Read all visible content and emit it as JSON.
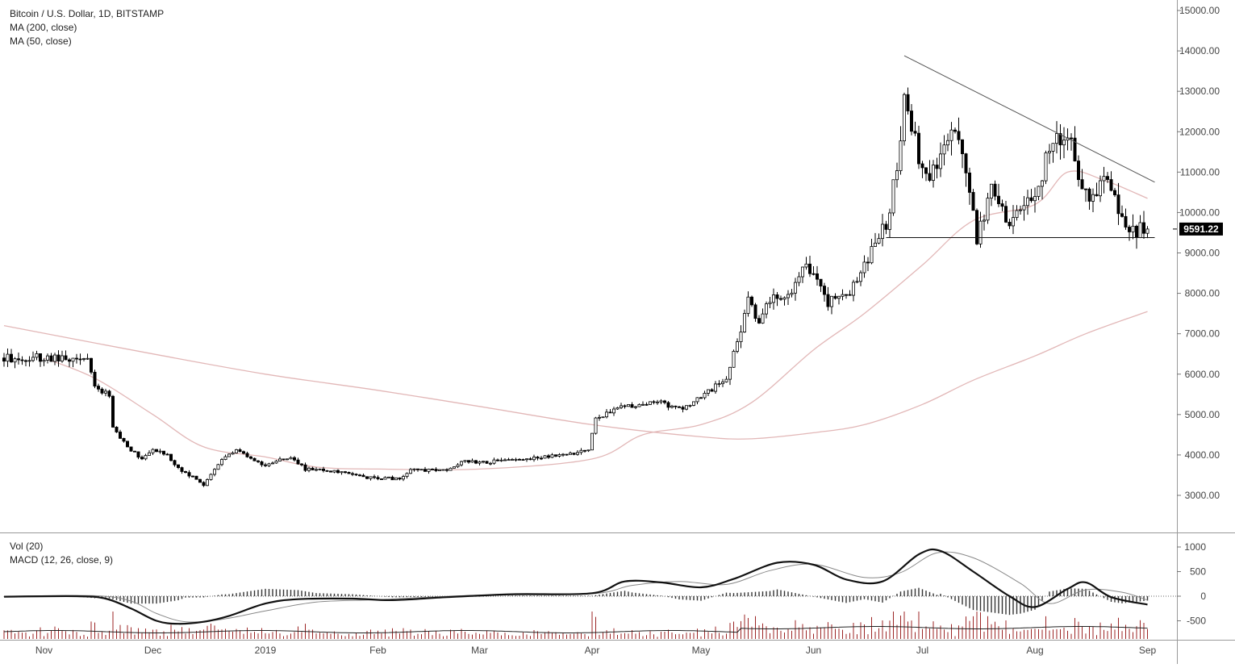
{
  "legend_price": {
    "symbol": "Bitcoin / U.S. Dollar, 1D, BITSTAMP",
    "ma200": "MA (200, close)",
    "ma50": "MA (50, close)"
  },
  "legend_indicators": {
    "vol": "Vol (20)",
    "macd": "MACD (12, 26, close, 9)"
  },
  "last_price_label": "9591.22",
  "colors": {
    "candle": "#000000",
    "ma_lines": "#e2b7b7",
    "trendline": "#555555",
    "macd_line": "#111111",
    "signal_line": "#888888",
    "histogram": "#333333",
    "volume_bars": "#8b0000",
    "axis_text": "#444444",
    "price_tag_bg": "#000000"
  },
  "chart_data": [
    {
      "type": "candlestick",
      "title": "Bitcoin / U.S. Dollar, 1D, BITSTAMP",
      "x_ticks": [
        "Nov",
        "Dec",
        "2019",
        "Feb",
        "Mar",
        "Apr",
        "May",
        "Jun",
        "Jul",
        "Aug",
        "Sep"
      ],
      "x_tick_dates": [
        "2018-11-01",
        "2018-12-01",
        "2019-01-01",
        "2019-02-01",
        "2019-03-01",
        "2019-04-01",
        "2019-05-01",
        "2019-06-01",
        "2019-07-01",
        "2019-08-01",
        "2019-09-01"
      ],
      "y_ticks": [
        "15000.00",
        "14000.00",
        "13000.00",
        "12000.00",
        "11000.00",
        "10000.00",
        "9000.00",
        "8000.00",
        "7000.00",
        "6000.00",
        "5000.00",
        "4000.00",
        "3000.00"
      ],
      "ylim": [
        2100,
        15250
      ],
      "last_price": 9591.22,
      "close_path": [
        [
          "2018-10-21",
          6400
        ],
        [
          "2018-11-05",
          6420
        ],
        [
          "2018-11-13",
          6350
        ],
        [
          "2018-11-15",
          5650
        ],
        [
          "2018-11-19",
          5500
        ],
        [
          "2018-11-20",
          4700
        ],
        [
          "2018-11-24",
          4200
        ],
        [
          "2018-11-28",
          3900
        ],
        [
          "2018-12-01",
          4150
        ],
        [
          "2018-12-05",
          4000
        ],
        [
          "2018-12-08",
          3650
        ],
        [
          "2018-12-12",
          3450
        ],
        [
          "2018-12-15",
          3220
        ],
        [
          "2018-12-17",
          3500
        ],
        [
          "2018-12-20",
          3900
        ],
        [
          "2018-12-24",
          4100
        ],
        [
          "2019-01-01",
          3750
        ],
        [
          "2019-01-08",
          3950
        ],
        [
          "2019-01-12",
          3650
        ],
        [
          "2019-01-20",
          3600
        ],
        [
          "2019-01-28",
          3450
        ],
        [
          "2019-02-07",
          3400
        ],
        [
          "2019-02-10",
          3650
        ],
        [
          "2019-02-20",
          3600
        ],
        [
          "2019-02-24",
          3850
        ],
        [
          "2019-02-28",
          3820
        ],
        [
          "2019-03-10",
          3850
        ],
        [
          "2019-03-20",
          3980
        ],
        [
          "2019-03-31",
          4100
        ],
        [
          "2019-04-02",
          4900
        ],
        [
          "2019-04-10",
          5200
        ],
        [
          "2019-04-20",
          5300
        ],
        [
          "2019-04-26",
          5100
        ],
        [
          "2019-05-05",
          5700
        ],
        [
          "2019-05-08",
          5900
        ],
        [
          "2019-05-11",
          6800
        ],
        [
          "2019-05-14",
          7900
        ],
        [
          "2019-05-17",
          7300
        ],
        [
          "2019-05-20",
          7900
        ],
        [
          "2019-05-25",
          8000
        ],
        [
          "2019-05-30",
          8650
        ],
        [
          "2019-06-05",
          7800
        ],
        [
          "2019-06-10",
          7900
        ],
        [
          "2019-06-15",
          8700
        ],
        [
          "2019-06-21",
          9800
        ],
        [
          "2019-06-24",
          11000
        ],
        [
          "2019-06-26",
          12800
        ],
        [
          "2019-06-28",
          12000
        ],
        [
          "2019-07-02",
          10800
        ],
        [
          "2019-07-05",
          11200
        ],
        [
          "2019-07-09",
          12300
        ],
        [
          "2019-07-12",
          11400
        ],
        [
          "2019-07-16",
          9400
        ],
        [
          "2019-07-20",
          10500
        ],
        [
          "2019-07-25",
          9800
        ],
        [
          "2019-08-01",
          10400
        ],
        [
          "2019-08-06",
          11800
        ],
        [
          "2019-08-10",
          11900
        ],
        [
          "2019-08-15",
          10400
        ],
        [
          "2019-08-20",
          10800
        ],
        [
          "2019-08-24",
          10100
        ],
        [
          "2019-08-28",
          9500
        ],
        [
          "2019-08-31",
          9600
        ],
        [
          "2019-09-01",
          9591.22
        ]
      ],
      "series": [
        {
          "name": "MA (200, close)",
          "points": [
            [
              "2018-10-21",
              7200
            ],
            [
              "2018-12-01",
              6500
            ],
            [
              "2019-01-01",
              6000
            ],
            [
              "2019-02-01",
              5600
            ],
            [
              "2019-03-01",
              5200
            ],
            [
              "2019-04-01",
              4750
            ],
            [
              "2019-05-01",
              4450
            ],
            [
              "2019-05-15",
              4400
            ],
            [
              "2019-06-01",
              4550
            ],
            [
              "2019-06-15",
              4750
            ],
            [
              "2019-07-01",
              5250
            ],
            [
              "2019-07-15",
              5850
            ],
            [
              "2019-08-01",
              6450
            ],
            [
              "2019-08-15",
              7000
            ],
            [
              "2019-09-01",
              7550
            ]
          ]
        },
        {
          "name": "MA (50, close)",
          "points": [
            [
              "2018-11-01",
              6400
            ],
            [
              "2018-11-15",
              5900
            ],
            [
              "2018-12-01",
              5000
            ],
            [
              "2018-12-15",
              4200
            ],
            [
              "2019-01-01",
              3950
            ],
            [
              "2019-01-15",
              3700
            ],
            [
              "2019-02-01",
              3650
            ],
            [
              "2019-03-01",
              3650
            ],
            [
              "2019-04-01",
              3900
            ],
            [
              "2019-04-15",
              4500
            ],
            [
              "2019-05-01",
              4750
            ],
            [
              "2019-05-15",
              5300
            ],
            [
              "2019-06-01",
              6600
            ],
            [
              "2019-06-15",
              7500
            ],
            [
              "2019-07-01",
              8700
            ],
            [
              "2019-07-15",
              9800
            ],
            [
              "2019-08-01",
              10200
            ],
            [
              "2019-08-10",
              11000
            ],
            [
              "2019-08-20",
              10800
            ],
            [
              "2019-09-01",
              10350
            ]
          ]
        }
      ],
      "trendlines": [
        {
          "from": [
            "2019-06-26",
            13880
          ],
          "to": [
            "2019-09-03",
            10750
          ]
        },
        {
          "from": [
            "2019-06-21",
            9380
          ],
          "to": [
            "2019-09-03",
            9380
          ]
        }
      ]
    },
    {
      "type": "line",
      "title": "MACD (12, 26, close, 9)",
      "y_ticks": [
        "1000",
        "500",
        "0",
        "-500"
      ],
      "ylim": [
        -800,
        1150
      ],
      "series": [
        {
          "name": "MACD",
          "points": [
            [
              "2018-10-21",
              -10
            ],
            [
              "2018-11-10",
              0
            ],
            [
              "2018-11-18",
              -50
            ],
            [
              "2018-11-25",
              -250
            ],
            [
              "2018-12-02",
              -500
            ],
            [
              "2018-12-08",
              -560
            ],
            [
              "2018-12-15",
              -520
            ],
            [
              "2018-12-22",
              -400
            ],
            [
              "2019-01-01",
              -150
            ],
            [
              "2019-01-10",
              -60
            ],
            [
              "2019-01-25",
              -50
            ],
            [
              "2019-02-05",
              -80
            ],
            [
              "2019-02-20",
              -20
            ],
            [
              "2019-03-10",
              40
            ],
            [
              "2019-04-01",
              60
            ],
            [
              "2019-04-10",
              300
            ],
            [
              "2019-04-20",
              280
            ],
            [
              "2019-05-01",
              180
            ],
            [
              "2019-05-10",
              350
            ],
            [
              "2019-05-22",
              680
            ],
            [
              "2019-06-01",
              640
            ],
            [
              "2019-06-10",
              340
            ],
            [
              "2019-06-20",
              300
            ],
            [
              "2019-06-30",
              850
            ],
            [
              "2019-07-06",
              920
            ],
            [
              "2019-07-15",
              500
            ],
            [
              "2019-07-25",
              0
            ],
            [
              "2019-08-01",
              -220
            ],
            [
              "2019-08-10",
              150
            ],
            [
              "2019-08-15",
              280
            ],
            [
              "2019-08-22",
              -20
            ],
            [
              "2019-09-01",
              -170
            ]
          ]
        },
        {
          "name": "Signal",
          "points": [
            [
              "2018-10-21",
              -5
            ],
            [
              "2018-11-15",
              10
            ],
            [
              "2018-11-25",
              -100
            ],
            [
              "2018-12-02",
              -350
            ],
            [
              "2018-12-10",
              -520
            ],
            [
              "2018-12-20",
              -470
            ],
            [
              "2019-01-01",
              -300
            ],
            [
              "2019-01-15",
              -120
            ],
            [
              "2019-02-01",
              -70
            ],
            [
              "2019-03-01",
              20
            ],
            [
              "2019-04-01",
              50
            ],
            [
              "2019-04-12",
              220
            ],
            [
              "2019-04-25",
              300
            ],
            [
              "2019-05-08",
              240
            ],
            [
              "2019-05-20",
              520
            ],
            [
              "2019-06-01",
              650
            ],
            [
              "2019-06-15",
              380
            ],
            [
              "2019-06-25",
              480
            ],
            [
              "2019-07-05",
              880
            ],
            [
              "2019-07-15",
              780
            ],
            [
              "2019-07-28",
              260
            ],
            [
              "2019-08-05",
              -150
            ],
            [
              "2019-08-15",
              130
            ],
            [
              "2019-08-25",
              80
            ],
            [
              "2019-09-01",
              -80
            ]
          ]
        }
      ]
    }
  ]
}
